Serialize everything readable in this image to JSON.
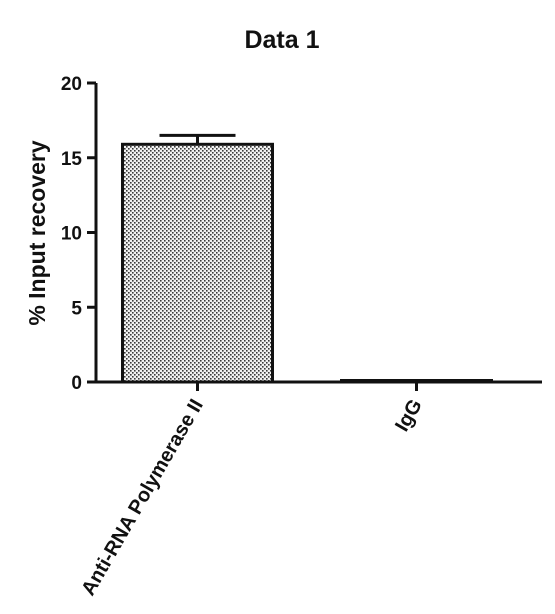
{
  "chart_data": {
    "type": "bar",
    "title": "Data 1",
    "xlabel": "",
    "ylabel": "% Input recovery",
    "ylim": [
      0,
      20
    ],
    "yticks": [
      0,
      5,
      10,
      15,
      20
    ],
    "categories": [
      "Anti-RNA Polymerase II",
      "IgG"
    ],
    "values": [
      15.9,
      0.1
    ],
    "errors": [
      0.6,
      0.0
    ],
    "grid": false,
    "legend": "none",
    "bar_fill": "stippled",
    "colors": {
      "axis": "#111111",
      "bar_outline": "#111111",
      "bar_dots": "#3a3a3a",
      "bar_background": "#f2f2f2"
    }
  }
}
